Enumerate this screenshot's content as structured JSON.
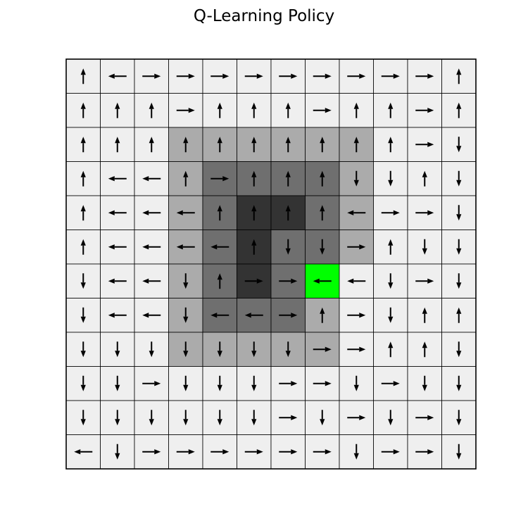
{
  "title": "Q-Learning Policy",
  "colors": {
    "level_0": "#efefef",
    "level_1": "#ababab",
    "level_2": "#6f6f6f",
    "level_3": "#333333",
    "goal": "#00ff00",
    "arrow": "#000000",
    "grid_line": "#000000"
  },
  "chart_data": {
    "type": "heatmap",
    "title": "Q-Learning Policy",
    "rows": 12,
    "cols": 12,
    "goal": [
      6,
      7
    ],
    "shade_levels": [
      [
        0,
        0,
        0,
        0,
        0,
        0,
        0,
        0,
        0,
        0,
        0,
        0
      ],
      [
        0,
        0,
        0,
        0,
        0,
        0,
        0,
        0,
        0,
        0,
        0,
        0
      ],
      [
        0,
        0,
        0,
        1,
        1,
        1,
        1,
        1,
        1,
        0,
        0,
        0
      ],
      [
        0,
        0,
        0,
        1,
        2,
        2,
        2,
        2,
        1,
        0,
        0,
        0
      ],
      [
        0,
        0,
        0,
        1,
        2,
        3,
        3,
        2,
        1,
        0,
        0,
        0
      ],
      [
        0,
        0,
        0,
        1,
        2,
        3,
        2,
        2,
        1,
        0,
        0,
        0
      ],
      [
        0,
        0,
        0,
        1,
        2,
        3,
        2,
        4,
        0,
        0,
        0,
        0
      ],
      [
        0,
        0,
        0,
        1,
        2,
        2,
        2,
        1,
        0,
        0,
        0,
        0
      ],
      [
        0,
        0,
        0,
        1,
        1,
        1,
        1,
        1,
        0,
        0,
        0,
        0
      ],
      [
        0,
        0,
        0,
        0,
        0,
        0,
        0,
        0,
        0,
        0,
        0,
        0
      ],
      [
        0,
        0,
        0,
        0,
        0,
        0,
        0,
        0,
        0,
        0,
        0,
        0
      ],
      [
        0,
        0,
        0,
        0,
        0,
        0,
        0,
        0,
        0,
        0,
        0,
        0
      ]
    ],
    "policy": [
      [
        "up",
        "left",
        "right",
        "right",
        "right",
        "right",
        "right",
        "right",
        "right",
        "right",
        "right",
        "up"
      ],
      [
        "up",
        "up",
        "up",
        "right",
        "up",
        "up",
        "up",
        "right",
        "up",
        "up",
        "right",
        "up"
      ],
      [
        "up",
        "up",
        "up",
        "up",
        "up",
        "up",
        "up",
        "up",
        "up",
        "up",
        "right",
        "down"
      ],
      [
        "up",
        "left",
        "left",
        "up",
        "right",
        "up",
        "up",
        "up",
        "down",
        "down",
        "up",
        "down"
      ],
      [
        "up",
        "left",
        "left",
        "left",
        "up",
        "up",
        "up",
        "up",
        "left",
        "right",
        "right",
        "down"
      ],
      [
        "up",
        "left",
        "left",
        "left",
        "left",
        "up",
        "down",
        "down",
        "right",
        "up",
        "down",
        "down"
      ],
      [
        "down",
        "left",
        "left",
        "down",
        "up",
        "right",
        "right",
        "left",
        "left",
        "down",
        "right",
        "down"
      ],
      [
        "down",
        "left",
        "left",
        "down",
        "left",
        "left",
        "right",
        "up",
        "right",
        "down",
        "up",
        "up"
      ],
      [
        "down",
        "down",
        "down",
        "down",
        "down",
        "down",
        "down",
        "right",
        "right",
        "up",
        "up",
        "down"
      ],
      [
        "down",
        "down",
        "right",
        "down",
        "down",
        "down",
        "right",
        "right",
        "down",
        "right",
        "down",
        "down"
      ],
      [
        "down",
        "down",
        "down",
        "down",
        "down",
        "down",
        "right",
        "down",
        "right",
        "down",
        "right",
        "down"
      ],
      [
        "left",
        "down",
        "right",
        "right",
        "right",
        "right",
        "right",
        "right",
        "down",
        "right",
        "right",
        "down"
      ]
    ]
  }
}
